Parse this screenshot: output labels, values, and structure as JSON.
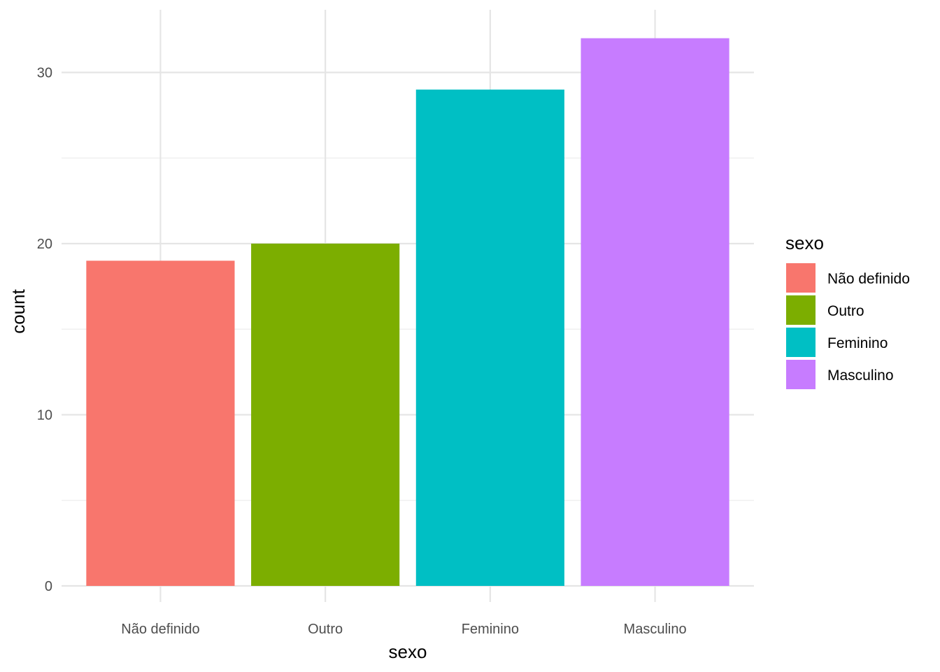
{
  "chart_data": {
    "type": "bar",
    "xlabel": "sexo",
    "ylabel": "count",
    "categories": [
      "Não definido",
      "Outro",
      "Feminino",
      "Masculino"
    ],
    "values": [
      19,
      20,
      29,
      32
    ],
    "colors": [
      "#F8766D",
      "#7CAE00",
      "#00BFC4",
      "#C77CFF"
    ],
    "ylim": [
      0,
      33.6
    ],
    "yticks": [
      0,
      10,
      20,
      30
    ],
    "grid": true,
    "legend": {
      "title": "sexo",
      "position": "right",
      "entries": [
        "Não definido",
        "Outro",
        "Feminino",
        "Masculino"
      ]
    }
  }
}
